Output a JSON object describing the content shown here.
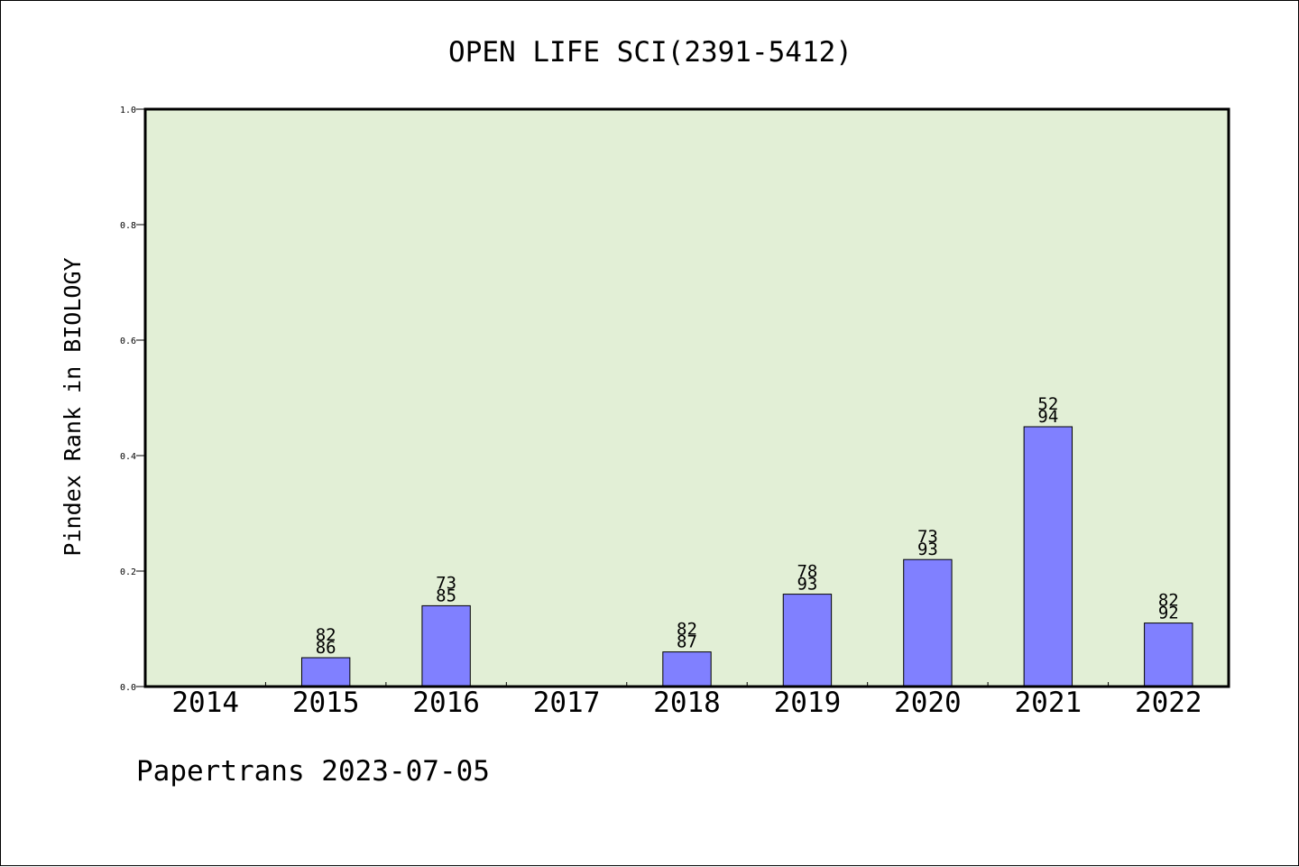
{
  "chart_data": {
    "type": "bar",
    "title": "OPEN LIFE SCI(2391-5412)",
    "xlabel": "",
    "ylabel": "Pindex Rank in BIOLOGY",
    "ylim": [
      0.0,
      1.0
    ],
    "yticks": [
      "0.0",
      "0.2",
      "0.4",
      "0.6",
      "0.8",
      "1.0"
    ],
    "categories": [
      "2014",
      "2015",
      "2016",
      "2017",
      "2018",
      "2019",
      "2020",
      "2021",
      "2022"
    ],
    "values": [
      null,
      0.05,
      0.14,
      null,
      0.06,
      0.16,
      0.22,
      0.45,
      0.11
    ],
    "bar_labels": [
      null,
      [
        "82",
        "86"
      ],
      [
        "73",
        "85"
      ],
      null,
      [
        "82",
        "87"
      ],
      [
        "78",
        "93"
      ],
      [
        "73",
        "93"
      ],
      [
        "52",
        "94"
      ],
      [
        "82",
        "92"
      ]
    ],
    "grid": false,
    "legend": "none",
    "colors": {
      "plot_background": "#e2efd6",
      "bar_fill": "#8080ff",
      "bar_stroke": "#000000",
      "axis": "#000000"
    }
  },
  "footer": {
    "text": "Papertrans 2023-07-05"
  }
}
